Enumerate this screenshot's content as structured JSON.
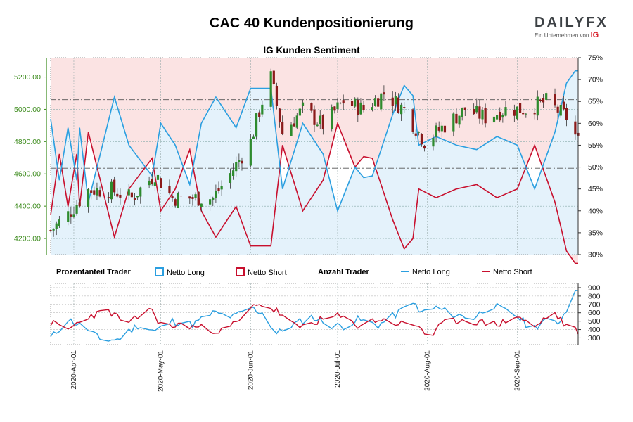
{
  "header": {
    "title": "CAC 40 Kundenpositionierung",
    "subtitle": "IG Kunden Sentiment"
  },
  "logo": {
    "word_main": "DAILY",
    "word_fx": "FX",
    "tagline": "Ein Unternehmen von",
    "tagline_brand": "IG"
  },
  "legend": {
    "group1_title": "Prozentanteil Trader",
    "group1_long": "Netto Long",
    "group1_short": "Netto Short",
    "group2_title": "Anzahl Trader",
    "group2_long": "Netto Long",
    "group2_short": "Netto Short"
  },
  "colors": {
    "long": "#2b9fe0",
    "short": "#c8102e",
    "candle_up": "#2e8b2e",
    "candle_down": "#8b1a1a",
    "axis_left": "#3a8a1a"
  },
  "chart_data": [
    {
      "type": "candlestick",
      "title": "IG Kunden Sentiment",
      "ylabel_left": "",
      "ylim": [
        4100,
        5320
      ],
      "yticks": [
        4200,
        4400,
        4600,
        4800,
        5000,
        5200
      ],
      "ytick_labels": [
        "4200.00",
        "4400.00",
        "4600.00",
        "4800.00",
        "5000.00",
        "5200.00"
      ],
      "ylim_right_percent": [
        30,
        75
      ],
      "yticks_right": [
        "30%",
        "35%",
        "40%",
        "45%",
        "50%",
        "55%",
        "60%",
        "65%",
        "70%",
        "75%"
      ],
      "reference_lines": [
        4635,
        5060
      ],
      "x_start": "2020-03-24",
      "x_end": "2020-09-22",
      "x_ticks": [
        "2020-Apr-01",
        "2020-May-01",
        "2020-Jun-01",
        "2020-Jul-01",
        "2020-Aug-01",
        "2020-Sep-01"
      ],
      "close_keypoints": [
        [
          "2020-03-24",
          4250
        ],
        [
          "2020-03-30",
          4350
        ],
        [
          "2020-04-06",
          4500
        ],
        [
          "2020-04-14",
          4500
        ],
        [
          "2020-04-21",
          4450
        ],
        [
          "2020-04-29",
          4600
        ],
        [
          "2020-05-05",
          4450
        ],
        [
          "2020-05-12",
          4450
        ],
        [
          "2020-05-19",
          4450
        ],
        [
          "2020-05-25",
          4600
        ],
        [
          "2020-06-01",
          4800
        ],
        [
          "2020-06-05",
          5050
        ],
        [
          "2020-06-08",
          5200
        ],
        [
          "2020-06-12",
          4850
        ],
        [
          "2020-06-19",
          5000
        ],
        [
          "2020-06-26",
          4900
        ],
        [
          "2020-07-03",
          5050
        ],
        [
          "2020-07-10",
          5000
        ],
        [
          "2020-07-17",
          5100
        ],
        [
          "2020-07-24",
          5000
        ],
        [
          "2020-07-31",
          4800
        ],
        [
          "2020-08-07",
          4900
        ],
        [
          "2020-08-14",
          5000
        ],
        [
          "2020-08-21",
          4950
        ],
        [
          "2020-08-28",
          5000
        ],
        [
          "2020-09-04",
          5000
        ],
        [
          "2020-09-11",
          5050
        ],
        [
          "2020-09-18",
          4950
        ],
        [
          "2020-09-22",
          4800
        ]
      ],
      "series_percent": [
        {
          "name": "Netto Long",
          "keypoints": [
            [
              "2020-03-24",
              61
            ],
            [
              "2020-03-27",
              47
            ],
            [
              "2020-03-30",
              59
            ],
            [
              "2020-04-02",
              47
            ],
            [
              "2020-04-03",
              59
            ],
            [
              "2020-04-06",
              42
            ],
            [
              "2020-04-15",
              66
            ],
            [
              "2020-04-20",
              55
            ],
            [
              "2020-04-28",
              48
            ],
            [
              "2020-05-01",
              60
            ],
            [
              "2020-05-06",
              55
            ],
            [
              "2020-05-11",
              46
            ],
            [
              "2020-05-15",
              60
            ],
            [
              "2020-05-20",
              66
            ],
            [
              "2020-05-27",
              59
            ],
            [
              "2020-06-01",
              68
            ],
            [
              "2020-06-08",
              68
            ],
            [
              "2020-06-12",
              45
            ],
            [
              "2020-06-19",
              60
            ],
            [
              "2020-06-26",
              53
            ],
            [
              "2020-07-01",
              40
            ],
            [
              "2020-07-07",
              50
            ],
            [
              "2020-07-12",
              46
            ],
            [
              "2020-07-20",
              62
            ],
            [
              "2020-07-26",
              72
            ],
            [
              "2020-07-29",
              55
            ],
            [
              "2020-08-04",
              57
            ],
            [
              "2020-08-11",
              55
            ],
            [
              "2020-08-18",
              54
            ],
            [
              "2020-08-25",
              57
            ],
            [
              "2020-09-01",
              55
            ],
            [
              "2020-09-07",
              45
            ],
            [
              "2020-09-14",
              58
            ],
            [
              "2020-09-19",
              72
            ],
            [
              "2020-09-22",
              72
            ]
          ]
        },
        {
          "name": "Netto Short",
          "keypoints": [
            [
              "2020-03-24",
              39
            ],
            [
              "2020-03-27",
              53
            ],
            [
              "2020-03-30",
              41
            ],
            [
              "2020-04-02",
              53
            ],
            [
              "2020-04-03",
              41
            ],
            [
              "2020-04-06",
              58
            ],
            [
              "2020-04-15",
              34
            ],
            [
              "2020-04-20",
              45
            ],
            [
              "2020-04-28",
              52
            ],
            [
              "2020-05-01",
              40
            ],
            [
              "2020-05-06",
              45
            ],
            [
              "2020-05-11",
              54
            ],
            [
              "2020-05-15",
              40
            ],
            [
              "2020-05-20",
              34
            ],
            [
              "2020-05-27",
              41
            ],
            [
              "2020-06-01",
              32
            ],
            [
              "2020-06-08",
              32
            ],
            [
              "2020-06-12",
              55
            ],
            [
              "2020-06-19",
              40
            ],
            [
              "2020-06-26",
              47
            ],
            [
              "2020-07-01",
              60
            ],
            [
              "2020-07-07",
              50
            ],
            [
              "2020-07-12",
              54
            ],
            [
              "2020-07-20",
              38
            ],
            [
              "2020-07-26",
              28
            ],
            [
              "2020-07-29",
              45
            ],
            [
              "2020-08-04",
              43
            ],
            [
              "2020-08-11",
              45
            ],
            [
              "2020-08-18",
              46
            ],
            [
              "2020-08-25",
              43
            ],
            [
              "2020-09-01",
              45
            ],
            [
              "2020-09-07",
              55
            ],
            [
              "2020-09-14",
              42
            ],
            [
              "2020-09-19",
              28
            ],
            [
              "2020-09-22",
              28
            ]
          ]
        }
      ]
    },
    {
      "type": "line",
      "title": "Anzahl Trader",
      "ylim": [
        220,
        950
      ],
      "yticks": [
        300,
        400,
        500,
        600,
        700,
        800,
        900
      ],
      "ytick_labels": [
        "300",
        "400",
        "500",
        "600",
        "700",
        "800",
        "900"
      ],
      "series": [
        {
          "name": "Netto Long",
          "keypoints": [
            [
              "2020-03-24",
              300
            ],
            [
              "2020-03-30",
              520
            ],
            [
              "2020-04-06",
              400
            ],
            [
              "2020-04-10",
              280
            ],
            [
              "2020-04-16",
              280
            ],
            [
              "2020-04-23",
              450
            ],
            [
              "2020-04-29",
              380
            ],
            [
              "2020-05-05",
              500
            ],
            [
              "2020-05-12",
              460
            ],
            [
              "2020-05-19",
              600
            ],
            [
              "2020-05-26",
              550
            ],
            [
              "2020-06-01",
              660
            ],
            [
              "2020-06-05",
              600
            ],
            [
              "2020-06-10",
              350
            ],
            [
              "2020-06-15",
              450
            ],
            [
              "2020-06-22",
              550
            ],
            [
              "2020-06-29",
              450
            ],
            [
              "2020-07-03",
              440
            ],
            [
              "2020-07-08",
              520
            ],
            [
              "2020-07-15",
              450
            ],
            [
              "2020-07-22",
              600
            ],
            [
              "2020-07-27",
              750
            ],
            [
              "2020-07-29",
              600
            ],
            [
              "2020-08-04",
              660
            ],
            [
              "2020-08-10",
              580
            ],
            [
              "2020-08-17",
              540
            ],
            [
              "2020-08-23",
              700
            ],
            [
              "2020-08-28",
              620
            ],
            [
              "2020-09-01",
              560
            ],
            [
              "2020-09-06",
              400
            ],
            [
              "2020-09-10",
              500
            ],
            [
              "2020-09-15",
              480
            ],
            [
              "2020-09-19",
              680
            ],
            [
              "2020-09-20",
              900
            ],
            [
              "2020-09-22",
              900
            ]
          ]
        },
        {
          "name": "Netto Short",
          "keypoints": [
            [
              "2020-03-24",
              480
            ],
            [
              "2020-03-30",
              400
            ],
            [
              "2020-04-06",
              560
            ],
            [
              "2020-04-13",
              620
            ],
            [
              "2020-04-20",
              460
            ],
            [
              "2020-04-27",
              660
            ],
            [
              "2020-05-02",
              420
            ],
            [
              "2020-05-08",
              460
            ],
            [
              "2020-05-15",
              420
            ],
            [
              "2020-05-22",
              380
            ],
            [
              "2020-05-29",
              520
            ],
            [
              "2020-06-03",
              720
            ],
            [
              "2020-06-10",
              620
            ],
            [
              "2020-06-17",
              420
            ],
            [
              "2020-06-24",
              500
            ],
            [
              "2020-07-01",
              560
            ],
            [
              "2020-07-08",
              450
            ],
            [
              "2020-07-15",
              520
            ],
            [
              "2020-07-22",
              470
            ],
            [
              "2020-07-29",
              450
            ],
            [
              "2020-08-02",
              280
            ],
            [
              "2020-08-06",
              470
            ],
            [
              "2020-08-13",
              520
            ],
            [
              "2020-08-20",
              480
            ],
            [
              "2020-08-26",
              470
            ],
            [
              "2020-09-01",
              560
            ],
            [
              "2020-09-07",
              420
            ],
            [
              "2020-09-13",
              620
            ],
            [
              "2020-09-19",
              400
            ],
            [
              "2020-09-22",
              380
            ]
          ]
        }
      ]
    }
  ]
}
